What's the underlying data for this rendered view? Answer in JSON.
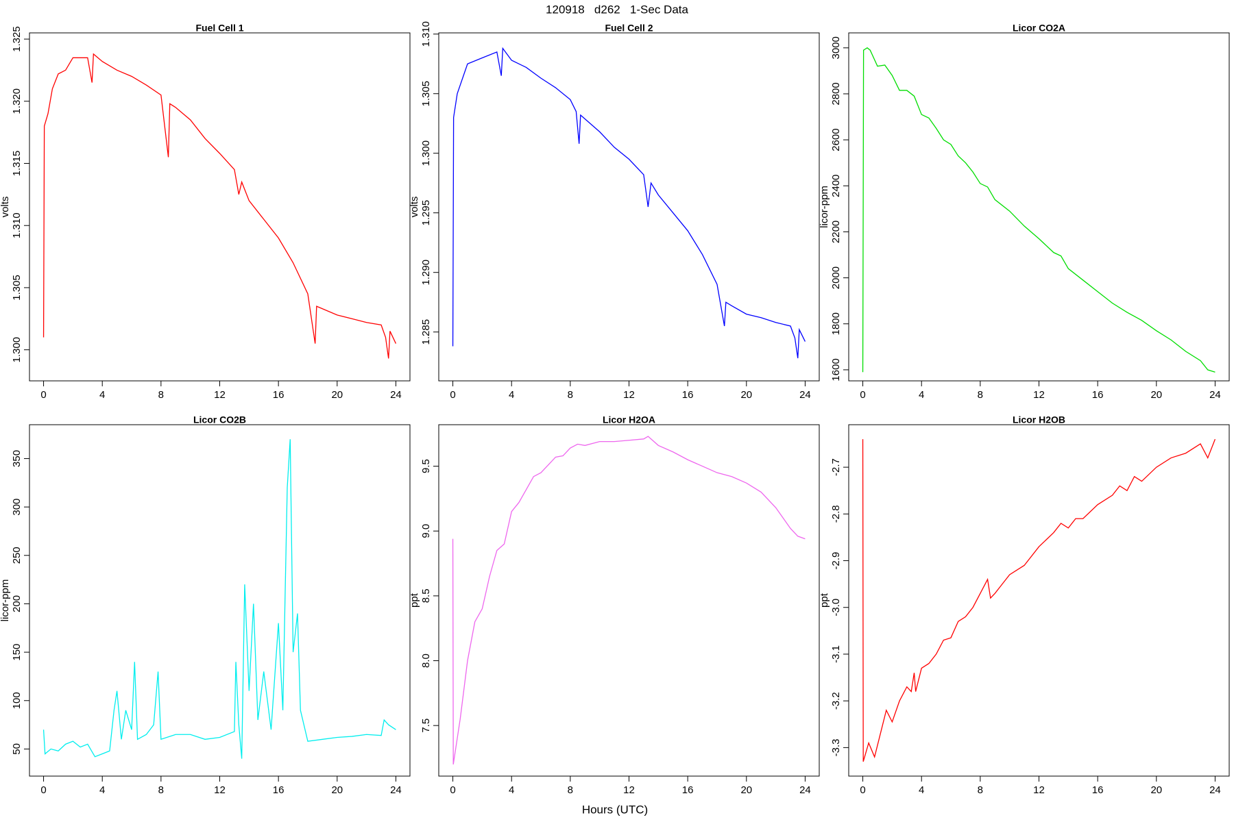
{
  "figure": {
    "title": "120918   d262   1-Sec Data",
    "xlabel": "Hours (UTC)"
  },
  "chart_data": [
    {
      "type": "line",
      "title": "Fuel Cell 1",
      "ylabel": "volts",
      "color": "#ff0000",
      "x": [
        0,
        0.05,
        0.3,
        0.6,
        1,
        1.5,
        2,
        2.5,
        3,
        3.3,
        3.4,
        4,
        5,
        6,
        7,
        8,
        8.2,
        8.5,
        8.6,
        9,
        10,
        11,
        12,
        13,
        13.3,
        13.5,
        14,
        15,
        16,
        17,
        18,
        18.5,
        18.6,
        19,
        20,
        21,
        22,
        23,
        23.3,
        23.5,
        23.6,
        24
      ],
      "values": [
        1.301,
        1.318,
        1.319,
        1.321,
        1.3222,
        1.3225,
        1.3235,
        1.3235,
        1.3235,
        1.3215,
        1.3238,
        1.3232,
        1.3225,
        1.322,
        1.3213,
        1.3205,
        1.3185,
        1.3155,
        1.3198,
        1.3195,
        1.3185,
        1.317,
        1.3158,
        1.3145,
        1.3125,
        1.3135,
        1.312,
        1.3105,
        1.309,
        1.307,
        1.3045,
        1.3005,
        1.3035,
        1.3033,
        1.3028,
        1.3025,
        1.3022,
        1.302,
        1.301,
        1.2993,
        1.3015,
        1.3005
      ],
      "xlim": [
        -0.96,
        24.96
      ],
      "xticks": [
        0,
        4,
        8,
        12,
        16,
        20,
        24
      ],
      "ylim": [
        1.2975,
        1.3255
      ],
      "yticks": [
        {
          "value": 1.3,
          "label": "1.300"
        },
        1.305,
        {
          "value": 1.31,
          "label": "1.310"
        },
        1.315,
        {
          "value": 1.32,
          "label": "1.320"
        },
        1.325
      ]
    },
    {
      "type": "line",
      "title": "Fuel Cell 2",
      "ylabel": "volts",
      "color": "#0000ff",
      "x": [
        0,
        0.05,
        0.3,
        1,
        2,
        3,
        3.3,
        3.4,
        4,
        5,
        6,
        7,
        8,
        8.4,
        8.6,
        8.7,
        10,
        11,
        12,
        13,
        13.3,
        13.5,
        14,
        15,
        16,
        17,
        18,
        18.5,
        18.6,
        19,
        20,
        21,
        22,
        23,
        23.3,
        23.5,
        23.6,
        24
      ],
      "values": [
        1.2838,
        1.303,
        1.305,
        1.3075,
        1.308,
        1.3085,
        1.3065,
        1.3088,
        1.3078,
        1.3072,
        1.3063,
        1.3055,
        1.3045,
        1.3035,
        1.3008,
        1.3032,
        1.3018,
        1.3005,
        1.2995,
        1.2982,
        1.2955,
        1.2975,
        1.2965,
        1.295,
        1.2935,
        1.2915,
        1.289,
        1.2855,
        1.2875,
        1.2872,
        1.2865,
        1.2862,
        1.2858,
        1.2855,
        1.2845,
        1.2828,
        1.2852,
        1.2842
      ],
      "xlim": [
        -0.96,
        24.96
      ],
      "xticks": [
        0,
        4,
        8,
        12,
        16,
        20,
        24
      ],
      "ylim": [
        1.2809,
        1.3101
      ],
      "yticks": [
        1.285,
        {
          "value": 1.29,
          "label": "1.290"
        },
        1.295,
        {
          "value": 1.3,
          "label": "1.300"
        },
        1.305,
        {
          "value": 1.31,
          "label": "1.310"
        }
      ]
    },
    {
      "type": "line",
      "title": "Licor CO2A",
      "ylabel": "licor-ppm",
      "color": "#00dd00",
      "x": [
        0,
        0.05,
        0.3,
        0.5,
        1,
        1.5,
        2,
        2.5,
        3,
        3.5,
        4,
        4.5,
        5,
        5.5,
        6,
        6.5,
        7,
        7.5,
        8,
        8.5,
        9,
        10,
        11,
        12,
        13,
        13.5,
        14,
        15,
        16,
        17,
        18,
        19,
        20,
        21,
        22,
        23,
        23.5,
        24
      ],
      "values": [
        1590,
        2990,
        3000,
        2990,
        2920,
        2925,
        2880,
        2815,
        2815,
        2790,
        2710,
        2695,
        2650,
        2600,
        2580,
        2530,
        2500,
        2460,
        2410,
        2395,
        2340,
        2290,
        2225,
        2170,
        2110,
        2095,
        2040,
        1990,
        1940,
        1890,
        1850,
        1815,
        1770,
        1730,
        1680,
        1640,
        1600,
        1590
      ],
      "xlim": [
        -0.96,
        24.96
      ],
      "xticks": [
        0,
        4,
        8,
        12,
        16,
        20,
        24
      ],
      "ylim": [
        1552,
        3065
      ],
      "yticks": [
        1600,
        1800,
        2000,
        2200,
        2400,
        2600,
        2800,
        3000
      ]
    },
    {
      "type": "line",
      "title": "Licor CO2B",
      "ylabel": "licor-ppm",
      "color": "#00eeee",
      "x": [
        0,
        0.1,
        0.5,
        1,
        1.5,
        2,
        2.5,
        3,
        3.5,
        4,
        4.5,
        4.8,
        5,
        5.3,
        5.6,
        6,
        6.2,
        6.4,
        7,
        7.5,
        7.8,
        8,
        9,
        10,
        11,
        12,
        13,
        13.1,
        13.3,
        13.5,
        13.7,
        14,
        14.3,
        14.6,
        15,
        15.5,
        16,
        16.3,
        16.6,
        16.8,
        17,
        17.3,
        17.5,
        18,
        19,
        20,
        21,
        22,
        23,
        23.2,
        23.5,
        24
      ],
      "values": [
        70,
        45,
        50,
        48,
        55,
        58,
        52,
        55,
        42,
        45,
        48,
        90,
        110,
        60,
        90,
        70,
        140,
        60,
        65,
        75,
        130,
        60,
        65,
        65,
        60,
        62,
        68,
        140,
        75,
        40,
        220,
        110,
        200,
        80,
        130,
        70,
        180,
        90,
        320,
        370,
        150,
        190,
        90,
        58,
        60,
        62,
        63,
        65,
        64,
        80,
        75,
        70
      ],
      "xlim": [
        -0.96,
        24.96
      ],
      "xticks": [
        0,
        4,
        8,
        12,
        16,
        20,
        24
      ],
      "ylim": [
        22,
        385
      ],
      "yticks": [
        50,
        100,
        150,
        200,
        250,
        300,
        350
      ]
    },
    {
      "type": "line",
      "title": "Licor H2OA",
      "ylabel": "ppt",
      "color": "#ee66ee",
      "x": [
        0,
        0.03,
        0.5,
        1,
        1.5,
        2,
        2.5,
        3,
        3.5,
        4,
        4.5,
        5,
        5.5,
        6,
        7,
        7.5,
        8,
        8.5,
        9,
        10,
        11,
        12,
        13,
        13.3,
        14,
        15,
        16,
        17,
        18,
        19,
        20,
        21,
        22,
        23,
        23.5,
        24
      ],
      "values": [
        8.94,
        7.2,
        7.55,
        8.0,
        8.3,
        8.4,
        8.65,
        8.85,
        8.9,
        9.15,
        9.22,
        9.32,
        9.42,
        9.45,
        9.57,
        9.58,
        9.64,
        9.67,
        9.66,
        9.69,
        9.69,
        9.7,
        9.71,
        9.73,
        9.66,
        9.61,
        9.55,
        9.5,
        9.45,
        9.42,
        9.37,
        9.3,
        9.18,
        9.02,
        8.96,
        8.94
      ],
      "xlim": [
        -0.96,
        24.96
      ],
      "xticks": [
        0,
        4,
        8,
        12,
        16,
        20,
        24
      ],
      "ylim": [
        7.11,
        9.82
      ],
      "yticks": [
        7.5,
        {
          "value": 8,
          "label": "8.0"
        },
        8.5,
        {
          "value": 9,
          "label": "9.0"
        },
        9.5
      ]
    },
    {
      "type": "line",
      "title": "Licor H2OB",
      "ylabel": "ppt",
      "color": "#ff0000",
      "x": [
        0,
        0.03,
        0.4,
        0.8,
        1.2,
        1.6,
        2,
        2.5,
        3,
        3.3,
        3.5,
        3.6,
        4,
        4.5,
        5,
        5.5,
        6,
        6.5,
        7,
        7.5,
        8,
        8.5,
        8.7,
        9,
        9.5,
        10,
        11,
        12,
        13,
        13.5,
        14,
        14.5,
        15,
        16,
        17,
        17.5,
        18,
        18.5,
        19,
        20,
        21,
        22,
        23,
        23.5,
        24
      ],
      "values": [
        -2.64,
        -3.33,
        -3.29,
        -3.32,
        -3.27,
        -3.22,
        -3.245,
        -3.2,
        -3.17,
        -3.18,
        -3.14,
        -3.18,
        -3.13,
        -3.12,
        -3.1,
        -3.07,
        -3.065,
        -3.03,
        -3.02,
        -3.0,
        -2.97,
        -2.94,
        -2.98,
        -2.97,
        -2.95,
        -2.93,
        -2.91,
        -2.87,
        -2.84,
        -2.82,
        -2.83,
        -2.81,
        -2.81,
        -2.78,
        -2.76,
        -2.74,
        -2.75,
        -2.72,
        -2.73,
        -2.7,
        -2.68,
        -2.67,
        -2.65,
        -2.68,
        -2.64
      ],
      "xlim": [
        -0.96,
        24.96
      ],
      "xticks": [
        0,
        4,
        8,
        12,
        16,
        20,
        24
      ],
      "ylim": [
        -3.361,
        -2.609
      ],
      "yticks": [
        -3.3,
        -3.2,
        -3.1,
        {
          "value": -3,
          "label": "-3.0"
        },
        -2.9,
        -2.8,
        -2.7
      ]
    }
  ]
}
